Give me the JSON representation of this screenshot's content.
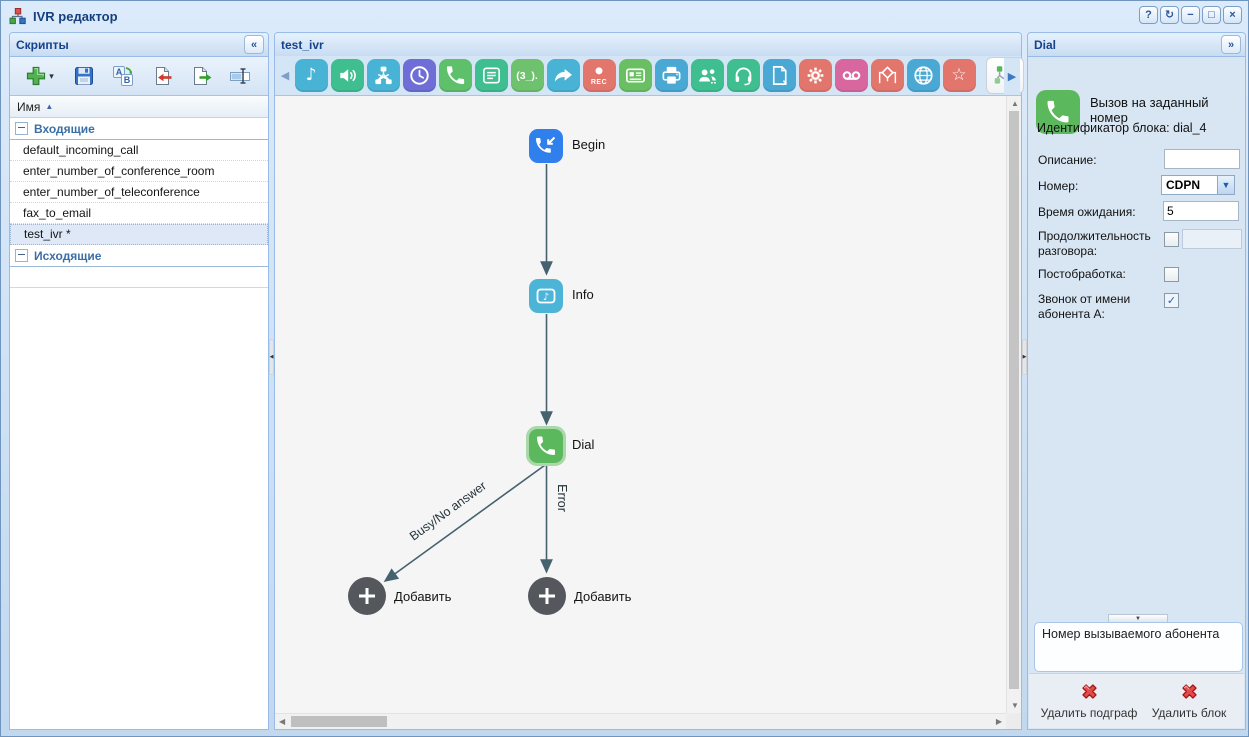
{
  "window": {
    "title": "IVR редактор",
    "controls": [
      {
        "name": "help",
        "glyph": "?"
      },
      {
        "name": "refresh",
        "glyph": "↻"
      },
      {
        "name": "minimize",
        "glyph": "−"
      },
      {
        "name": "maximize",
        "glyph": "□"
      },
      {
        "name": "close",
        "glyph": "×"
      }
    ]
  },
  "scripts_panel": {
    "title": "Скрипты",
    "collapse_glyph": "«",
    "toolbar": [
      {
        "name": "add-script"
      },
      {
        "name": "save-script"
      },
      {
        "name": "rename-script"
      },
      {
        "name": "import-script"
      },
      {
        "name": "export-script"
      },
      {
        "name": "edit-script-name"
      }
    ],
    "column_header": "Имя",
    "sort_glyph": "▲",
    "groups": [
      {
        "label": "Входящие",
        "items": [
          "default_incoming_call",
          "enter_number_of_conference_room",
          "enter_number_of_teleconference",
          "fax_to_email",
          "test_ivr *"
        ],
        "selected_index": 4
      },
      {
        "label": "Исходящие",
        "items": [],
        "selected_index": -1
      }
    ]
  },
  "canvas_panel": {
    "title": "test_ivr",
    "toolbar": [
      {
        "name": "play-music",
        "color": "#49b3d6",
        "glyph": "♪"
      },
      {
        "name": "speaker",
        "color": "#3fbe8f"
      },
      {
        "name": "flow",
        "color": "#49b3d6"
      },
      {
        "name": "clock",
        "color": "#6e6ed6"
      },
      {
        "name": "phone",
        "color": "#5ec06a"
      },
      {
        "name": "menu",
        "color": "#3fbe8f"
      },
      {
        "name": "digits",
        "color": "#6ec26e",
        "label": "(3_)."
      },
      {
        "name": "forward",
        "color": "#49b3d6"
      },
      {
        "name": "record",
        "color": "#e2766c",
        "label": "REC"
      },
      {
        "name": "card",
        "color": "#6abf63"
      },
      {
        "name": "fax",
        "color": "#49a9d4"
      },
      {
        "name": "people",
        "color": "#3fbe8f"
      },
      {
        "name": "headset",
        "color": "#3fbe8f"
      },
      {
        "name": "doc-code",
        "color": "#49a9d4"
      },
      {
        "name": "gear",
        "color": "#e2766c"
      },
      {
        "name": "voicemail",
        "color": "#d9679f"
      },
      {
        "name": "condition",
        "color": "#e2766c"
      },
      {
        "name": "globe",
        "color": "#49a9d4"
      },
      {
        "name": "star",
        "color": "#e2766c",
        "glyph": "☆"
      }
    ],
    "extra_buttons": [
      {
        "name": "subgraph-lock"
      },
      {
        "name": "subgraph-export"
      }
    ],
    "nodes": [
      {
        "id": "begin",
        "label": "Begin"
      },
      {
        "id": "info",
        "label": "Info"
      },
      {
        "id": "dial",
        "label": "Dial"
      },
      {
        "id": "add-left",
        "label": "Добавить"
      },
      {
        "id": "add-right",
        "label": "Добавить"
      }
    ],
    "edges": [
      {
        "label": "Busy/No answer"
      },
      {
        "label": "Error"
      }
    ]
  },
  "properties_panel": {
    "title": "Dial",
    "expand_glyph": "»",
    "block_title": "Вызов на заданный номер",
    "block_id": "Идентификатор блока: dial_4",
    "fields": {
      "description_label": "Описание:",
      "description_value": "",
      "number_label": "Номер:",
      "number_value": "CDPN",
      "timeout_label": "Время ожидания:",
      "timeout_value": "5",
      "duration_label": "Продолжительность разговора:",
      "duration_checked": false,
      "duration_value": "",
      "postprocessing_label": "Постобработка:",
      "postprocessing_checked": false,
      "caller_label": "Звонок от имени абонента А:",
      "caller_checked": true
    },
    "description_box": "Номер вызываемого абонента",
    "delete_subgraph_label": "Удалить подграф",
    "delete_block_label": "Удалить блок"
  }
}
